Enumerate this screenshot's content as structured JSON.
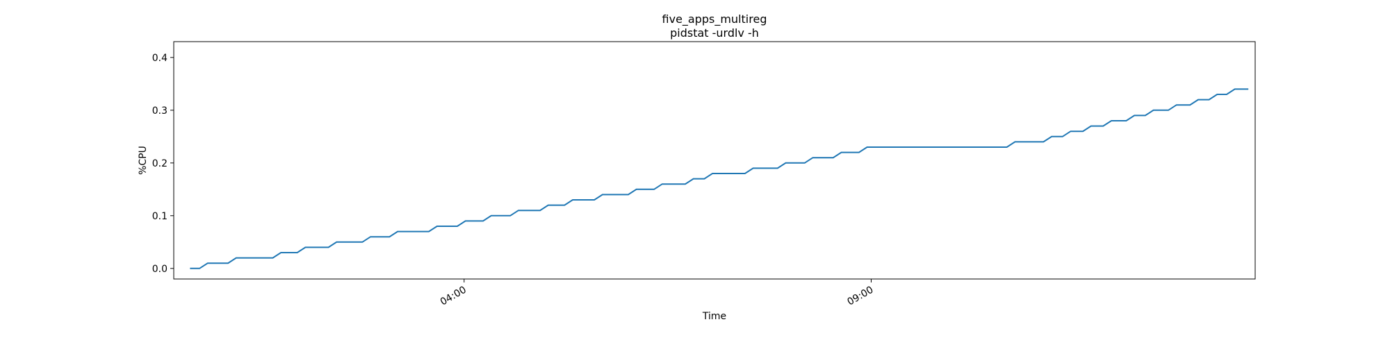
{
  "chart_data": {
    "type": "line",
    "title": "five_apps_multireg",
    "subtitle": "pidstat -urdlv -h",
    "xlabel": "Time",
    "ylabel": "%CPU",
    "xlim": [
      "2020-01-01T00:26",
      "2020-01-01T13:43"
    ],
    "ylim": [
      -0.02,
      0.43
    ],
    "x_ticks": [
      {
        "label": "04:00",
        "value": "2020-01-01T04:00"
      },
      {
        "label": "09:00",
        "value": "2020-01-01T09:00"
      }
    ],
    "y_ticks": [
      {
        "label": "0.0",
        "value": 0.0
      },
      {
        "label": "0.1",
        "value": 0.1
      },
      {
        "label": "0.2",
        "value": 0.2
      },
      {
        "label": "0.3",
        "value": 0.3
      },
      {
        "label": "0.4",
        "value": 0.4
      }
    ],
    "grid": false,
    "series": [
      {
        "color": "#1f77b4",
        "x": [
          "2020-01-01T00:38",
          "2020-01-01T00:45",
          "2020-01-01T00:51",
          "2020-01-01T01:06",
          "2020-01-01T01:12",
          "2020-01-01T01:39",
          "2020-01-01T01:45",
          "2020-01-01T01:57",
          "2020-01-01T02:03",
          "2020-01-01T02:20",
          "2020-01-01T02:26",
          "2020-01-01T02:45",
          "2020-01-01T02:51",
          "2020-01-01T03:05",
          "2020-01-01T03:11",
          "2020-01-01T03:34",
          "2020-01-01T03:40",
          "2020-01-01T03:55",
          "2020-01-01T04:01",
          "2020-01-01T04:14",
          "2020-01-01T04:20",
          "2020-01-01T04:34",
          "2020-01-01T04:40",
          "2020-01-01T04:56",
          "2020-01-01T05:02",
          "2020-01-01T05:14",
          "2020-01-01T05:20",
          "2020-01-01T05:36",
          "2020-01-01T05:42",
          "2020-01-01T06:01",
          "2020-01-01T06:07",
          "2020-01-01T06:20",
          "2020-01-01T06:26",
          "2020-01-01T06:43",
          "2020-01-01T06:49",
          "2020-01-01T06:57",
          "2020-01-01T07:03",
          "2020-01-01T07:27",
          "2020-01-01T07:33",
          "2020-01-01T07:51",
          "2020-01-01T07:57",
          "2020-01-01T08:11",
          "2020-01-01T08:17",
          "2020-01-01T08:32",
          "2020-01-01T08:38",
          "2020-01-01T08:51",
          "2020-01-01T08:57",
          "2020-01-01T10:40",
          "2020-01-01T10:46",
          "2020-01-01T11:07",
          "2020-01-01T11:13",
          "2020-01-01T11:21",
          "2020-01-01T11:27",
          "2020-01-01T11:36",
          "2020-01-01T11:42",
          "2020-01-01T11:51",
          "2020-01-01T11:57",
          "2020-01-01T12:08",
          "2020-01-01T12:14",
          "2020-01-01T12:22",
          "2020-01-01T12:28",
          "2020-01-01T12:39",
          "2020-01-01T12:45",
          "2020-01-01T12:55",
          "2020-01-01T13:01",
          "2020-01-01T13:09",
          "2020-01-01T13:15",
          "2020-01-01T13:22",
          "2020-01-01T13:28",
          "2020-01-01T13:38"
        ],
        "y": [
          0.0,
          0.0,
          0.01,
          0.01,
          0.02,
          0.02,
          0.03,
          0.03,
          0.04,
          0.04,
          0.05,
          0.05,
          0.06,
          0.06,
          0.07,
          0.07,
          0.08,
          0.08,
          0.09,
          0.09,
          0.1,
          0.1,
          0.11,
          0.11,
          0.12,
          0.12,
          0.13,
          0.13,
          0.14,
          0.14,
          0.15,
          0.15,
          0.16,
          0.16,
          0.17,
          0.17,
          0.18,
          0.18,
          0.19,
          0.19,
          0.2,
          0.2,
          0.21,
          0.21,
          0.22,
          0.22,
          0.23,
          0.23,
          0.24,
          0.24,
          0.25,
          0.25,
          0.26,
          0.26,
          0.27,
          0.27,
          0.28,
          0.28,
          0.29,
          0.29,
          0.3,
          0.3,
          0.31,
          0.31,
          0.32,
          0.32,
          0.33,
          0.33,
          0.34,
          0.34
        ]
      }
    ]
  }
}
